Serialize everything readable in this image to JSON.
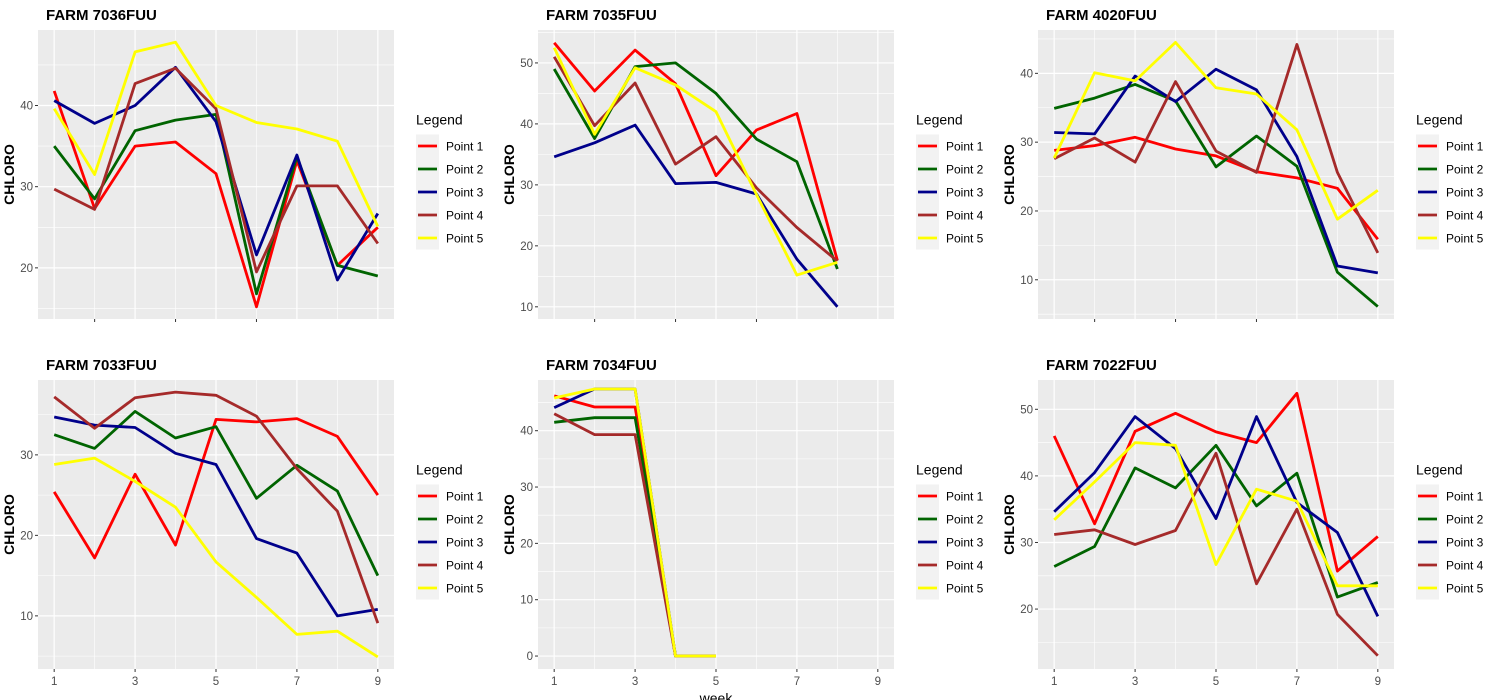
{
  "legend_title": "Legend",
  "ylabel": "CHLORO",
  "xlabel": "week",
  "series_names": [
    "Point 1",
    "Point 2",
    "Point 3",
    "Point 4",
    "Point 5"
  ],
  "series_colors": [
    "#ff0000",
    "#006400",
    "#00008b",
    "#a52a2a",
    "#ffff00"
  ],
  "panel_background": "#ebebeb",
  "grid_color": "#ffffff",
  "chart_data": [
    {
      "type": "line",
      "title": "FARM 7036FUU",
      "xlabel": "",
      "ylabel": "CHLORO",
      "x": [
        1,
        2,
        3,
        4,
        5,
        6,
        7,
        8,
        9
      ],
      "xlim": [
        0.6,
        9.4
      ],
      "ylim": [
        13.7,
        49.3
      ],
      "xticks": [],
      "yticks": [
        20,
        30,
        40
      ],
      "grid": true,
      "legend_position": "right",
      "series": [
        {
          "name": "Point 1",
          "values": [
            41.8,
            27.3,
            35.0,
            35.5,
            31.6,
            15.2,
            33.2,
            20.3,
            25.0
          ]
        },
        {
          "name": "Point 2",
          "values": [
            35.0,
            28.5,
            36.9,
            38.2,
            38.9,
            16.8,
            33.7,
            20.3,
            19.0
          ]
        },
        {
          "name": "Point 3",
          "values": [
            40.6,
            37.8,
            40.0,
            44.7,
            38.0,
            21.6,
            33.9,
            18.5,
            26.7
          ]
        },
        {
          "name": "Point 4",
          "values": [
            29.7,
            27.2,
            42.7,
            44.6,
            39.6,
            19.5,
            30.1,
            30.1,
            23.0
          ]
        },
        {
          "name": "Point 5",
          "values": [
            39.6,
            31.5,
            46.6,
            47.8,
            40.0,
            37.9,
            37.1,
            35.6,
            25.1
          ]
        }
      ]
    },
    {
      "type": "line",
      "title": "FARM 7035FUU",
      "xlabel": "",
      "ylabel": "CHLORO",
      "x": [
        1,
        2,
        3,
        4,
        5,
        6,
        7,
        8
      ],
      "xlim": [
        0.6,
        9.4
      ],
      "ylim": [
        8.0,
        55.4
      ],
      "xticks": [],
      "yticks": [
        10,
        20,
        30,
        40,
        50
      ],
      "grid": true,
      "legend_position": "right",
      "series": [
        {
          "name": "Point 1",
          "values": [
            53.3,
            45.4,
            52.1,
            46.6,
            31.5,
            39.0,
            41.7,
            17.6
          ]
        },
        {
          "name": "Point 2",
          "values": [
            49.0,
            37.6,
            49.4,
            50.0,
            45.0,
            37.5,
            33.8,
            16.2
          ]
        },
        {
          "name": "Point 3",
          "values": [
            34.6,
            36.9,
            39.8,
            30.2,
            30.4,
            28.5,
            17.8,
            10.0
          ]
        },
        {
          "name": "Point 4",
          "values": [
            51.0,
            39.7,
            46.7,
            33.4,
            37.9,
            29.5,
            23.0,
            17.5
          ]
        },
        {
          "name": "Point 5",
          "values": [
            52.5,
            38.3,
            49.2,
            46.4,
            42.0,
            28.4,
            15.2,
            17.3
          ]
        }
      ]
    },
    {
      "type": "line",
      "title": "FARM 4020FUU",
      "xlabel": "",
      "ylabel": "CHLORO",
      "x": [
        1,
        2,
        3,
        4,
        5,
        6,
        7,
        8,
        9
      ],
      "xlim": [
        0.6,
        9.4
      ],
      "ylim": [
        4.3,
        46.3
      ],
      "xticks": [],
      "yticks": [
        10,
        20,
        30,
        40
      ],
      "grid": true,
      "legend_position": "right",
      "series": [
        {
          "name": "Point 1",
          "values": [
            28.8,
            29.5,
            30.7,
            29.0,
            28.0,
            25.7,
            24.8,
            23.3,
            15.9
          ]
        },
        {
          "name": "Point 2",
          "values": [
            34.9,
            36.4,
            38.4,
            36.0,
            26.4,
            30.9,
            26.5,
            11.1,
            6.1
          ]
        },
        {
          "name": "Point 3",
          "values": [
            31.4,
            31.2,
            39.6,
            35.9,
            40.6,
            37.6,
            27.9,
            12.0,
            11.0
          ]
        },
        {
          "name": "Point 4",
          "values": [
            27.6,
            30.6,
            27.1,
            38.8,
            28.7,
            25.6,
            44.2,
            25.6,
            13.9
          ]
        },
        {
          "name": "Point 5",
          "values": [
            27.7,
            40.1,
            38.9,
            44.5,
            37.9,
            37.0,
            31.8,
            18.8,
            23.0
          ]
        }
      ]
    },
    {
      "type": "line",
      "title": "FARM 7033FUU",
      "xlabel": "",
      "ylabel": "CHLORO",
      "x": [
        1,
        2,
        3,
        4,
        5,
        6,
        7,
        8,
        9
      ],
      "xlim": [
        0.6,
        9.4
      ],
      "ylim": [
        3.4,
        39.3
      ],
      "xticks": [
        1,
        3,
        5,
        7,
        9
      ],
      "yticks": [
        10,
        20,
        30
      ],
      "grid": true,
      "legend_position": "right",
      "series": [
        {
          "name": "Point 1",
          "values": [
            25.4,
            17.2,
            27.6,
            18.8,
            34.4,
            34.1,
            34.5,
            32.3,
            25.0
          ]
        },
        {
          "name": "Point 2",
          "values": [
            32.5,
            30.8,
            35.4,
            32.1,
            33.5,
            24.6,
            28.7,
            25.5,
            15.0
          ]
        },
        {
          "name": "Point 3",
          "values": [
            34.7,
            33.7,
            33.4,
            30.2,
            28.8,
            19.6,
            17.8,
            10.0,
            10.8
          ]
        },
        {
          "name": "Point 4",
          "values": [
            37.2,
            33.3,
            37.1,
            37.8,
            37.4,
            34.8,
            28.3,
            23.0,
            9.1
          ]
        },
        {
          "name": "Point 5",
          "values": [
            28.8,
            29.6,
            26.7,
            23.5,
            16.7,
            12.3,
            7.7,
            8.1,
            4.9
          ]
        }
      ]
    },
    {
      "type": "line",
      "title": "FARM 7034FUU",
      "xlabel": "week",
      "ylabel": "CHLORO",
      "x": [
        1,
        2,
        3,
        4,
        5
      ],
      "xlim": [
        0.6,
        9.4
      ],
      "ylim": [
        -2.3,
        49.0
      ],
      "xticks": [
        1,
        3,
        5,
        7,
        9
      ],
      "yticks": [
        0,
        10,
        20,
        30,
        40
      ],
      "grid": true,
      "legend_position": "right",
      "series": [
        {
          "name": "Point 1",
          "values": [
            46.2,
            44.2,
            44.2,
            0,
            0
          ]
        },
        {
          "name": "Point 2",
          "values": [
            41.5,
            42.3,
            42.3,
            0,
            0
          ]
        },
        {
          "name": "Point 3",
          "values": [
            44.1,
            47.4,
            47.4,
            0,
            0
          ]
        },
        {
          "name": "Point 4",
          "values": [
            43.0,
            39.3,
            39.3,
            0,
            0
          ]
        },
        {
          "name": "Point 5",
          "values": [
            45.8,
            47.4,
            47.4,
            0,
            0
          ]
        }
      ]
    },
    {
      "type": "line",
      "title": "FARM 7022FUU",
      "xlabel": "",
      "ylabel": "CHLORO",
      "x": [
        1,
        2,
        3,
        4,
        5,
        6,
        7,
        8,
        9
      ],
      "xlim": [
        0.6,
        9.4
      ],
      "ylim": [
        11.0,
        54.4
      ],
      "xticks": [
        1,
        3,
        5,
        7,
        9
      ],
      "yticks": [
        20,
        30,
        40,
        50
      ],
      "grid": true,
      "legend_position": "right",
      "series": [
        {
          "name": "Point 1",
          "values": [
            46.0,
            32.8,
            46.7,
            49.4,
            46.6,
            45.0,
            52.4,
            25.7,
            30.9
          ]
        },
        {
          "name": "Point 2",
          "values": [
            26.4,
            29.4,
            41.2,
            38.2,
            44.6,
            35.5,
            40.4,
            21.8,
            24.0
          ]
        },
        {
          "name": "Point 3",
          "values": [
            34.6,
            40.5,
            48.9,
            44.1,
            33.6,
            48.9,
            36.0,
            31.5,
            18.9
          ]
        },
        {
          "name": "Point 4",
          "values": [
            31.2,
            31.9,
            29.7,
            31.8,
            43.4,
            23.8,
            35.0,
            19.2,
            13.0
          ]
        },
        {
          "name": "Point 5",
          "values": [
            33.4,
            39.1,
            45.0,
            44.6,
            26.7,
            38.0,
            36.2,
            23.5,
            23.5
          ]
        }
      ]
    }
  ]
}
